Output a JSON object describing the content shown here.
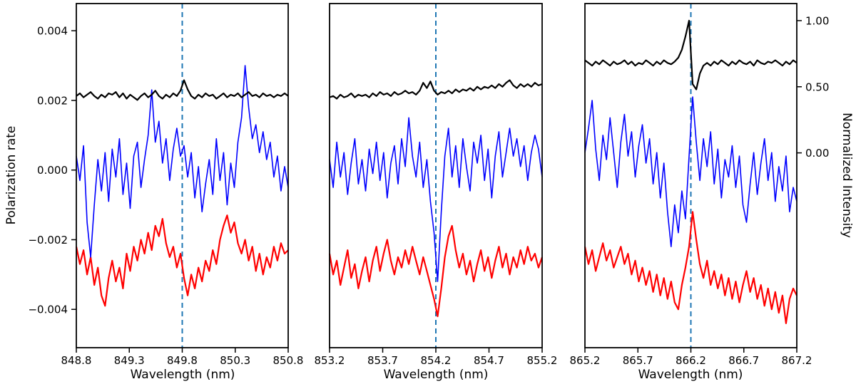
{
  "figure": {
    "background": "#ffffff",
    "left_axis": {
      "label": "Polarization rate",
      "tick_values": [
        0.004,
        0.002,
        0.0,
        -0.002,
        -0.004
      ],
      "tick_labels": [
        "0.004",
        "0.002",
        "0.000",
        "−0.002",
        "−0.004"
      ],
      "ylim": [
        -0.0051,
        0.00478
      ]
    },
    "right_axis": {
      "label": "Normalized Intensity",
      "tick_values": [
        1.0,
        0.5,
        0.0
      ],
      "tick_labels": [
        "1.00",
        "0.50",
        "0.00"
      ],
      "ylim": [
        -1.473,
        1.129
      ]
    },
    "vline_color": "#1f77b4",
    "series_colors": {
      "intensity": "#000000",
      "blue": "#0000ff",
      "red": "#ff0000"
    }
  },
  "chart_data": [
    {
      "type": "line",
      "xlabel": "Wavelength (nm)",
      "xlim": [
        848.8,
        850.8
      ],
      "x_tick_labels": [
        "848.8",
        "849.3",
        "849.8",
        "850.3",
        "850.8"
      ],
      "vline_x": 849.8,
      "series": [
        {
          "name": "normalized-intensity",
          "axis": "right",
          "color": "#000000",
          "unit_scale": 1,
          "values": [
            0.43,
            0.45,
            0.42,
            0.44,
            0.46,
            0.43,
            0.41,
            0.44,
            0.42,
            0.45,
            0.44,
            0.46,
            0.42,
            0.45,
            0.41,
            0.44,
            0.42,
            0.4,
            0.43,
            0.45,
            0.42,
            0.44,
            0.47,
            0.43,
            0.41,
            0.44,
            0.42,
            0.45,
            0.43,
            0.47,
            0.55,
            0.48,
            0.43,
            0.41,
            0.44,
            0.42,
            0.45,
            0.43,
            0.44,
            0.41,
            0.43,
            0.45,
            0.42,
            0.44,
            0.43,
            0.45,
            0.42,
            0.44,
            0.46,
            0.43,
            0.44,
            0.42,
            0.45,
            0.43,
            0.44,
            0.42,
            0.44,
            0.43,
            0.45,
            0.43
          ]
        },
        {
          "name": "polarization-signal-blue",
          "axis": "left",
          "color": "#0000ff",
          "unit_scale": 0.001,
          "values": [
            0.4,
            -0.3,
            0.7,
            -1.5,
            -2.5,
            -1.0,
            0.3,
            -0.6,
            0.5,
            -0.9,
            0.6,
            -0.2,
            0.9,
            -0.7,
            0.2,
            -1.1,
            0.4,
            0.8,
            -0.5,
            0.3,
            1.0,
            2.3,
            0.8,
            1.4,
            0.2,
            0.9,
            -0.3,
            0.6,
            1.2,
            0.4,
            0.7,
            -0.2,
            0.5,
            -0.8,
            0.1,
            -1.2,
            -0.4,
            0.3,
            -0.7,
            0.9,
            -0.3,
            0.5,
            -1.0,
            0.2,
            -0.5,
            0.8,
            1.5,
            3.0,
            1.8,
            0.9,
            1.3,
            0.5,
            1.1,
            0.3,
            0.8,
            -0.2,
            0.4,
            -0.6,
            0.1,
            -0.5
          ]
        },
        {
          "name": "polarization-signal-red",
          "axis": "left",
          "color": "#ff0000",
          "unit_scale": 0.001,
          "values": [
            -2.2,
            -2.7,
            -2.3,
            -3.0,
            -2.5,
            -3.3,
            -2.8,
            -3.6,
            -3.9,
            -3.1,
            -2.6,
            -3.2,
            -2.8,
            -3.4,
            -2.4,
            -2.9,
            -2.2,
            -2.6,
            -2.0,
            -2.4,
            -1.8,
            -2.3,
            -1.6,
            -1.9,
            -1.4,
            -2.1,
            -2.5,
            -2.2,
            -2.8,
            -2.4,
            -3.1,
            -3.6,
            -3.0,
            -3.4,
            -2.8,
            -3.2,
            -2.6,
            -2.9,
            -2.3,
            -2.7,
            -2.0,
            -1.6,
            -1.3,
            -1.8,
            -1.5,
            -2.1,
            -2.4,
            -2.0,
            -2.6,
            -2.2,
            -2.9,
            -2.4,
            -3.0,
            -2.5,
            -2.8,
            -2.2,
            -2.6,
            -2.1,
            -2.4,
            -2.3
          ]
        }
      ]
    },
    {
      "type": "line",
      "xlabel": "Wavelength (nm)",
      "xlim": [
        853.2,
        855.2
      ],
      "x_tick_labels": [
        "853.2",
        "853.7",
        "854.2",
        "854.7",
        "855.2"
      ],
      "vline_x": 854.2,
      "series": [
        {
          "name": "normalized-intensity",
          "axis": "right",
          "color": "#000000",
          "unit_scale": 1,
          "values": [
            0.42,
            0.43,
            0.41,
            0.44,
            0.42,
            0.43,
            0.45,
            0.42,
            0.44,
            0.43,
            0.44,
            0.42,
            0.45,
            0.43,
            0.46,
            0.44,
            0.45,
            0.43,
            0.46,
            0.44,
            0.45,
            0.47,
            0.45,
            0.46,
            0.44,
            0.47,
            0.53,
            0.49,
            0.54,
            0.47,
            0.44,
            0.46,
            0.45,
            0.47,
            0.45,
            0.48,
            0.46,
            0.48,
            0.47,
            0.49,
            0.47,
            0.5,
            0.48,
            0.5,
            0.49,
            0.51,
            0.49,
            0.52,
            0.5,
            0.53,
            0.55,
            0.51,
            0.49,
            0.52,
            0.5,
            0.52,
            0.5,
            0.53,
            0.51,
            0.52
          ]
        },
        {
          "name": "polarization-signal-blue",
          "axis": "left",
          "color": "#0000ff",
          "unit_scale": 0.001,
          "values": [
            0.3,
            -0.5,
            0.8,
            -0.2,
            0.5,
            -0.7,
            0.2,
            0.9,
            -0.4,
            0.3,
            -0.6,
            0.6,
            -0.1,
            0.8,
            -0.3,
            0.5,
            -0.8,
            0.2,
            0.7,
            -0.4,
            0.9,
            0.1,
            1.5,
            0.4,
            -0.2,
            0.8,
            -0.5,
            0.3,
            -0.9,
            -1.8,
            -3.2,
            -1.2,
            0.4,
            1.2,
            -0.2,
            0.7,
            -0.5,
            0.9,
            0.1,
            -0.6,
            0.8,
            0.2,
            1.0,
            -0.3,
            0.6,
            -0.8,
            0.4,
            1.1,
            -0.2,
            0.5,
            1.2,
            0.4,
            0.9,
            0.1,
            0.7,
            -0.3,
            0.5,
            1.0,
            0.6,
            -0.2
          ]
        },
        {
          "name": "polarization-signal-red",
          "axis": "left",
          "color": "#ff0000",
          "unit_scale": 0.001,
          "values": [
            -2.4,
            -3.0,
            -2.6,
            -3.3,
            -2.8,
            -2.3,
            -3.1,
            -2.7,
            -3.4,
            -2.9,
            -2.5,
            -3.2,
            -2.6,
            -2.2,
            -2.9,
            -2.4,
            -2.0,
            -2.6,
            -3.0,
            -2.5,
            -2.8,
            -2.3,
            -2.7,
            -2.2,
            -2.6,
            -3.0,
            -2.5,
            -2.9,
            -3.3,
            -3.7,
            -4.2,
            -3.4,
            -2.5,
            -1.9,
            -1.6,
            -2.3,
            -2.8,
            -2.4,
            -3.0,
            -2.6,
            -3.2,
            -2.7,
            -2.3,
            -2.9,
            -2.5,
            -3.1,
            -2.6,
            -2.2,
            -2.8,
            -2.4,
            -3.0,
            -2.5,
            -2.8,
            -2.3,
            -2.7,
            -2.2,
            -2.6,
            -2.4,
            -2.8,
            -2.5
          ]
        }
      ]
    },
    {
      "type": "line",
      "xlabel": "Wavelength (nm)",
      "xlim": [
        865.2,
        867.2
      ],
      "x_tick_labels": [
        "865.2",
        "865.7",
        "866.2",
        "866.7",
        "867.2"
      ],
      "vline_x": 866.2,
      "series": [
        {
          "name": "normalized-intensity",
          "axis": "right",
          "color": "#000000",
          "unit_scale": 1,
          "values": [
            0.7,
            0.68,
            0.66,
            0.69,
            0.67,
            0.7,
            0.68,
            0.66,
            0.69,
            0.67,
            0.68,
            0.7,
            0.67,
            0.69,
            0.66,
            0.68,
            0.67,
            0.7,
            0.68,
            0.66,
            0.69,
            0.67,
            0.7,
            0.68,
            0.67,
            0.69,
            0.72,
            0.78,
            0.88,
            1.0,
            0.52,
            0.48,
            0.6,
            0.66,
            0.68,
            0.66,
            0.69,
            0.67,
            0.7,
            0.68,
            0.66,
            0.69,
            0.67,
            0.7,
            0.68,
            0.67,
            0.69,
            0.66,
            0.7,
            0.68,
            0.67,
            0.69,
            0.68,
            0.7,
            0.68,
            0.66,
            0.69,
            0.67,
            0.7,
            0.68
          ]
        },
        {
          "name": "polarization-signal-blue",
          "axis": "left",
          "color": "#0000ff",
          "unit_scale": 0.001,
          "values": [
            0.5,
            1.2,
            2.0,
            0.6,
            -0.3,
            1.0,
            0.3,
            1.5,
            0.5,
            -0.5,
            0.8,
            1.6,
            0.4,
            1.1,
            -0.2,
            0.7,
            1.3,
            0.2,
            0.9,
            -0.4,
            0.5,
            -0.8,
            0.2,
            -1.2,
            -2.2,
            -1.0,
            -1.8,
            -0.6,
            -1.4,
            0.4,
            2.1,
            0.8,
            -0.3,
            0.9,
            0.1,
            1.1,
            -0.4,
            0.6,
            -0.8,
            0.3,
            -0.2,
            0.7,
            -0.5,
            0.4,
            -1.0,
            -1.5,
            -0.4,
            0.5,
            -0.7,
            0.2,
            0.9,
            -0.3,
            0.5,
            -0.9,
            0.1,
            -0.6,
            0.4,
            -1.2,
            -0.5,
            -0.9
          ]
        },
        {
          "name": "polarization-signal-red",
          "axis": "left",
          "color": "#ff0000",
          "unit_scale": 0.001,
          "values": [
            -2.2,
            -2.7,
            -2.3,
            -2.9,
            -2.5,
            -2.1,
            -2.6,
            -2.3,
            -2.8,
            -2.5,
            -2.2,
            -2.7,
            -2.4,
            -3.0,
            -2.6,
            -3.2,
            -2.8,
            -3.3,
            -2.9,
            -3.5,
            -3.0,
            -3.6,
            -3.1,
            -3.7,
            -3.2,
            -3.8,
            -4.0,
            -3.3,
            -2.8,
            -2.2,
            -1.2,
            -2.0,
            -2.7,
            -3.1,
            -2.6,
            -3.3,
            -2.9,
            -3.4,
            -3.0,
            -3.6,
            -3.1,
            -3.7,
            -3.2,
            -3.8,
            -3.3,
            -2.9,
            -3.5,
            -3.1,
            -3.7,
            -3.3,
            -3.9,
            -3.4,
            -4.0,
            -3.5,
            -4.1,
            -3.6,
            -4.4,
            -3.7,
            -3.4,
            -3.6
          ]
        }
      ]
    }
  ]
}
